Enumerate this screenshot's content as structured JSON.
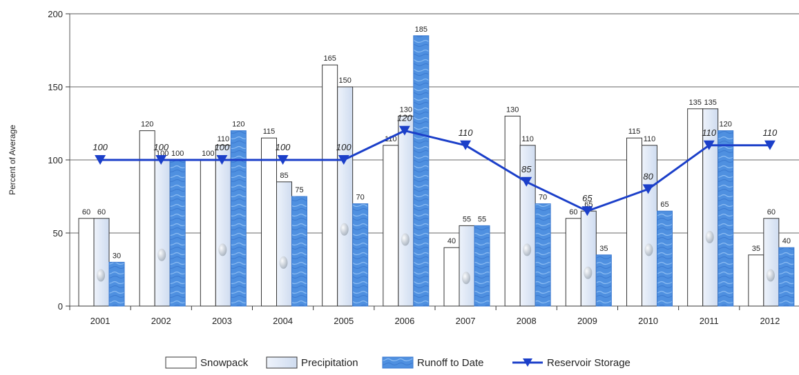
{
  "chart_data": {
    "type": "bar",
    "ylabel": "Percent of Average",
    "ylim": [
      0,
      200
    ],
    "yticks": [
      0,
      50,
      100,
      150,
      200
    ],
    "grid": true,
    "legend_position": "bottom",
    "categories": [
      "2001",
      "2002",
      "2003",
      "2004",
      "2005",
      "2006",
      "2007",
      "2008",
      "2009",
      "2010",
      "2011",
      "2012"
    ],
    "series": [
      {
        "name": "Snowpack",
        "kind": "bar",
        "color": "#ffffff",
        "values": [
          60,
          120,
          100,
          115,
          165,
          110,
          40,
          130,
          60,
          115,
          135,
          35
        ]
      },
      {
        "name": "Precipitation",
        "kind": "bar",
        "color": "#dfe8f6",
        "values": [
          60,
          100,
          110,
          85,
          150,
          130,
          55,
          110,
          65,
          110,
          135,
          60
        ]
      },
      {
        "name": "Runoff to Date",
        "kind": "bar",
        "color": "#4f90e0",
        "values": [
          30,
          100,
          120,
          75,
          70,
          185,
          55,
          70,
          35,
          65,
          120,
          40
        ]
      },
      {
        "name": "Reservoir Storage",
        "kind": "line",
        "color": "#1b3fc9",
        "values": [
          100,
          100,
          100,
          100,
          100,
          120,
          110,
          85,
          65,
          80,
          110,
          110
        ]
      }
    ]
  }
}
